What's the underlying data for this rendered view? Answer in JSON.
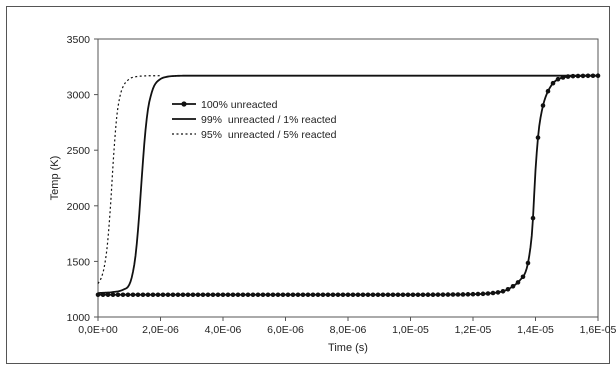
{
  "chart_data": {
    "type": "line",
    "title": "",
    "xlabel": "Time (s)",
    "ylabel": "Temp (K)",
    "xlim": [
      0,
      1.6e-05
    ],
    "ylim": [
      1000,
      3500
    ],
    "grid": false,
    "legend_position": "top-left",
    "x_tick_labels": [
      "0,0E+00",
      "2,0E-06",
      "4,0E-06",
      "6,0E-06",
      "8,0E-06",
      "1,0E-05",
      "1,2E-05",
      "1,4E-05",
      "1,6E-05"
    ],
    "y_tick_labels": [
      "1000",
      "1500",
      "2000",
      "2500",
      "3000",
      "3500"
    ],
    "series": [
      {
        "name": "100% unreacted",
        "style": "solid-with-markers",
        "color": "#111111",
        "x": [
          0,
          1e-06,
          2e-06,
          3e-06,
          4e-06,
          5e-06,
          6e-06,
          7e-06,
          8e-06,
          9e-06,
          1e-05,
          1.1e-05,
          1.2e-05,
          1.25e-05,
          1.3e-05,
          1.33e-05,
          1.35e-05,
          1.37e-05,
          1.38e-05,
          1.39e-05,
          1.4e-05,
          1.41e-05,
          1.42e-05,
          1.43e-05,
          1.45e-05,
          1.47e-05,
          1.5e-05,
          1.55e-05,
          1.6e-05
        ],
        "y": [
          1200,
          1200,
          1200,
          1200,
          1200,
          1200,
          1200,
          1200,
          1200,
          1200,
          1200,
          1201,
          1205,
          1212,
          1235,
          1280,
          1330,
          1420,
          1550,
          1800,
          2320,
          2670,
          2850,
          2960,
          3080,
          3135,
          3160,
          3168,
          3170
        ]
      },
      {
        "name": "99%  unreacted / 1% reacted",
        "style": "solid",
        "color": "#111111",
        "x": [
          0,
          5e-07,
          8e-07,
          1e-06,
          1.1e-06,
          1.2e-06,
          1.3e-06,
          1.4e-06,
          1.5e-06,
          1.6e-06,
          1.7e-06,
          1.8e-06,
          2e-06,
          2.2e-06,
          2.5e-06,
          3e-06,
          1.6e-05
        ],
        "y": [
          1215,
          1225,
          1245,
          1290,
          1380,
          1550,
          1850,
          2250,
          2620,
          2870,
          3000,
          3080,
          3140,
          3160,
          3168,
          3170,
          3170
        ]
      },
      {
        "name": "95%  unreacted / 5% reacted",
        "style": "dotted",
        "color": "#111111",
        "x": [
          0,
          1e-07,
          2e-07,
          3e-07,
          4e-07,
          5e-07,
          6e-07,
          7e-07,
          8e-07,
          1e-06,
          1.2e-06,
          1.5e-06,
          2e-06
        ],
        "y": [
          1300,
          1350,
          1450,
          1650,
          2000,
          2450,
          2800,
          2980,
          3070,
          3140,
          3160,
          3168,
          3170
        ]
      }
    ]
  }
}
